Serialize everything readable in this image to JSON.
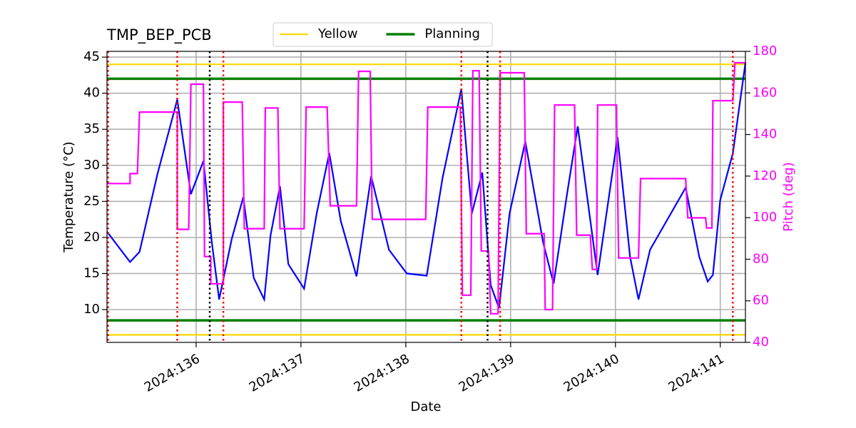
{
  "chart_data": {
    "type": "line",
    "title": "TMP_BEP_PCB",
    "xlabel": "Date",
    "ylabel": "Temperature (°C)",
    "y2label": "Pitch (deg)",
    "xlim": [
      135.15,
      141.24
    ],
    "xticks": [
      {
        "value": 136,
        "label": "2024:136"
      },
      {
        "value": 137,
        "label": "2024:137"
      },
      {
        "value": 138,
        "label": "2024:138"
      },
      {
        "value": 139,
        "label": "2024:139"
      },
      {
        "value": 140,
        "label": "2024:140"
      },
      {
        "value": 141,
        "label": "2024:141"
      }
    ],
    "ylim": [
      5.45,
      45.8
    ],
    "yticks": [
      10,
      15,
      20,
      25,
      30,
      35,
      40,
      45
    ],
    "y2lim": [
      40,
      180
    ],
    "y2ticks": [
      40,
      60,
      80,
      100,
      120,
      140,
      160,
      180
    ],
    "grid": true,
    "legend": "top",
    "limits": [
      {
        "name": "Yellow",
        "color": "#ffd700",
        "values": [
          44,
          6.5
        ]
      },
      {
        "name": "Planning",
        "color": "#008000",
        "values": [
          42,
          8.5
        ]
      }
    ],
    "vlines": [
      {
        "x": 135.16,
        "color": "#ff0000"
      },
      {
        "x": 135.82,
        "color": "#ff0000"
      },
      {
        "x": 136.26,
        "color": "#ff0000"
      },
      {
        "x": 138.53,
        "color": "#ff0000"
      },
      {
        "x": 138.9,
        "color": "#ff0000"
      },
      {
        "x": 141.12,
        "color": "#ff0000"
      },
      {
        "x": 136.13,
        "color": "#000000"
      },
      {
        "x": 138.78,
        "color": "#000000"
      }
    ],
    "series": [
      {
        "color": "#0000ff",
        "x": [
          135.15,
          135.37,
          135.46,
          135.63,
          135.82,
          135.95,
          136.07,
          136.15,
          136.22,
          136.34,
          136.45,
          136.55,
          136.65,
          136.71,
          136.8,
          136.88,
          137.03,
          137.15,
          137.27,
          137.38,
          137.53,
          137.67,
          137.84,
          138.01,
          138.2,
          138.35,
          138.53,
          138.63,
          138.73,
          138.81,
          138.89,
          138.99,
          139.14,
          139.31,
          139.41,
          139.54,
          139.64,
          139.83,
          140.02,
          140.14,
          140.22,
          140.33,
          140.67,
          140.8,
          140.88,
          140.93,
          141.0,
          141.12,
          141.24
        ],
        "values": [
          20.8,
          16.6,
          18.0,
          28.7,
          39.1,
          26.0,
          30.6,
          19.3,
          11.4,
          19.8,
          25.6,
          14.4,
          11.4,
          20.3,
          27.1,
          16.3,
          12.9,
          23.3,
          31.7,
          22.3,
          14.6,
          28.5,
          18.3,
          15.0,
          14.7,
          28.2,
          40.6,
          23.3,
          29.0,
          13.4,
          10.2,
          23.3,
          33.3,
          19.3,
          13.6,
          26.2,
          35.4,
          14.8,
          33.9,
          17.3,
          11.4,
          18.3,
          26.9,
          17.3,
          13.9,
          14.8,
          25.2,
          31.7,
          44.2
        ]
      },
      {
        "color": "#ff00ff",
        "axis": "y2",
        "x": [
          135.15,
          135.37,
          135.37,
          135.44,
          135.46,
          135.82,
          135.82,
          135.93,
          135.95,
          136.07,
          136.08,
          136.14,
          136.14,
          136.26,
          136.26,
          136.44,
          136.46,
          136.65,
          136.66,
          136.78,
          136.8,
          137.03,
          137.05,
          137.25,
          137.28,
          137.53,
          137.55,
          137.66,
          137.68,
          138.19,
          138.21,
          138.52,
          138.54,
          138.62,
          138.64,
          138.7,
          138.72,
          138.79,
          138.81,
          138.88,
          138.9,
          139.13,
          139.15,
          139.32,
          139.33,
          139.4,
          139.42,
          139.61,
          139.63,
          139.76,
          139.78,
          139.82,
          139.83,
          140.01,
          140.03,
          140.22,
          140.24,
          140.67,
          140.69,
          140.86,
          140.87,
          140.92,
          140.93,
          141.12,
          141.14,
          141.24
        ],
        "values": [
          116.4,
          116.4,
          121.2,
          121.2,
          150.8,
          150.8,
          94.4,
          94.4,
          164.2,
          164.2,
          81.3,
          81.3,
          68.2,
          68.2,
          155.6,
          155.6,
          94.7,
          94.7,
          152.8,
          152.8,
          94.7,
          94.7,
          153.2,
          153.2,
          105.7,
          105.7,
          170.4,
          170.4,
          99.2,
          99.2,
          153.2,
          153.2,
          62.7,
          62.7,
          170.7,
          170.7,
          84.0,
          84.0,
          53.8,
          53.8,
          169.7,
          169.7,
          92.3,
          92.3,
          55.8,
          55.8,
          154.2,
          154.2,
          91.6,
          91.6,
          75.1,
          75.1,
          154.2,
          154.2,
          80.6,
          80.6,
          118.8,
          118.8,
          99.9,
          99.9,
          95.0,
          95.0,
          156.3,
          156.3,
          174.5,
          174.5
        ]
      }
    ]
  }
}
